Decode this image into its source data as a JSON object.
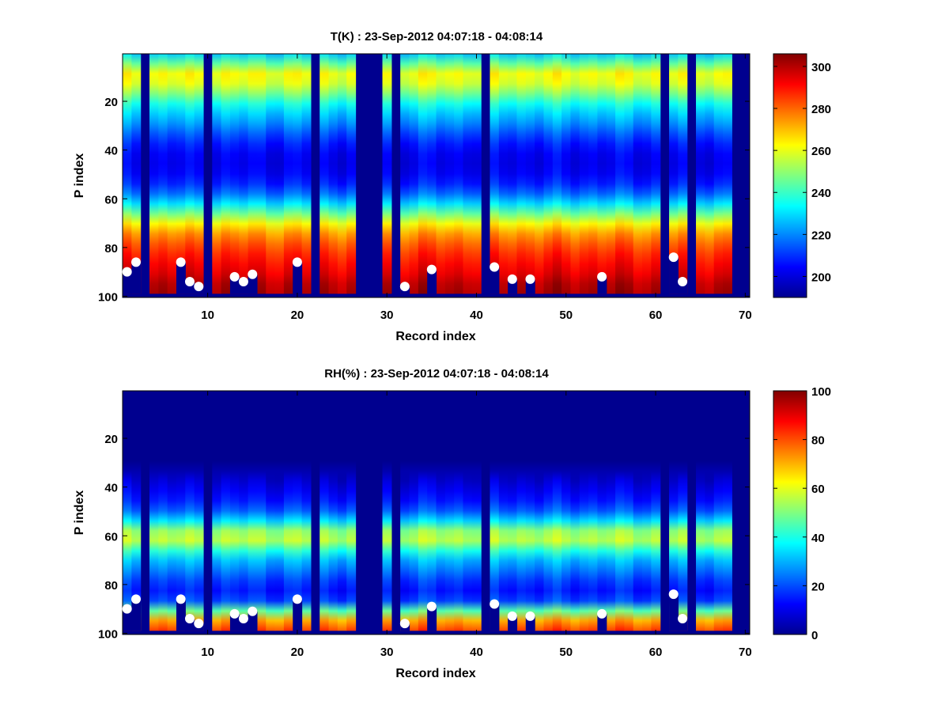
{
  "colormap": {
    "name": "jet",
    "stops": [
      "#00008F",
      "#0000FF",
      "#00FFFF",
      "#FFFF00",
      "#FF0000",
      "#800000"
    ]
  },
  "marker_color": "#FFFFFF",
  "background_fill": "#00008F",
  "chart_data": [
    {
      "type": "heatmap",
      "title": "T(K) : 23-Sep-2012 04:07:18 - 04:08:14",
      "xlabel": "Record index",
      "ylabel": "P index",
      "xlim": [
        0.5,
        70.5
      ],
      "ylim": [
        0.5,
        100.5
      ],
      "y_reversed": true,
      "grid": false,
      "xticks": [
        10,
        20,
        30,
        40,
        50,
        60,
        70
      ],
      "yticks": [
        20,
        40,
        60,
        80,
        100
      ],
      "colorbar": {
        "min": 190,
        "max": 306,
        "ticks": [
          200,
          220,
          240,
          260,
          280,
          300
        ]
      },
      "value_profile": {
        "p_index": [
          1,
          5,
          8,
          11,
          15,
          20,
          25,
          30,
          35,
          40,
          45,
          50,
          55,
          60,
          65,
          70,
          75,
          80,
          85,
          90,
          95,
          98
        ],
        "values": [
          228,
          248,
          262,
          262,
          254,
          238,
          228,
          220,
          211,
          204,
          202,
          204,
          210,
          222,
          242,
          262,
          276,
          284,
          290,
          294,
          300,
          302
        ]
      },
      "missing_records": [
        3,
        10,
        22,
        27,
        28,
        29,
        31,
        41,
        61,
        64,
        69,
        70
      ],
      "missing_p_above": 99,
      "surface_markers": {
        "records": [
          1,
          2,
          7,
          8,
          9,
          13,
          14,
          15,
          20,
          32,
          35,
          42,
          44,
          46,
          54,
          62,
          63
        ],
        "p_index": [
          90,
          86,
          86,
          94,
          96,
          92,
          94,
          91,
          86,
          96,
          89,
          88,
          93,
          93,
          92,
          84,
          94
        ]
      }
    },
    {
      "type": "heatmap",
      "title": "RH(%) : 23-Sep-2012 04:07:18 - 04:08:14",
      "xlabel": "Record index",
      "ylabel": "P index",
      "xlim": [
        0.5,
        70.5
      ],
      "ylim": [
        0.5,
        100.5
      ],
      "y_reversed": true,
      "grid": false,
      "xticks": [
        10,
        20,
        30,
        40,
        50,
        60,
        70
      ],
      "yticks": [
        20,
        40,
        60,
        80,
        100
      ],
      "colorbar": {
        "min": 0,
        "max": 100,
        "ticks": [
          0,
          20,
          40,
          60,
          80,
          100
        ]
      },
      "value_profile": {
        "p_index": [
          1,
          30,
          36,
          40,
          45,
          50,
          55,
          58,
          62,
          65,
          68,
          72,
          76,
          80,
          84,
          88,
          90,
          92,
          95,
          98
        ],
        "values": [
          0,
          0,
          6,
          10,
          14,
          22,
          38,
          52,
          56,
          46,
          34,
          28,
          22,
          16,
          14,
          22,
          38,
          60,
          72,
          82
        ]
      },
      "missing_records": [
        3,
        10,
        22,
        27,
        28,
        29,
        31,
        41,
        61,
        64,
        69,
        70
      ],
      "missing_p_above": 99,
      "surface_markers": {
        "records": [
          1,
          2,
          7,
          8,
          9,
          13,
          14,
          15,
          20,
          32,
          35,
          42,
          44,
          46,
          54,
          62,
          63
        ],
        "p_index": [
          90,
          86,
          86,
          94,
          96,
          92,
          94,
          91,
          86,
          96,
          89,
          88,
          93,
          93,
          92,
          84,
          94
        ]
      }
    }
  ]
}
